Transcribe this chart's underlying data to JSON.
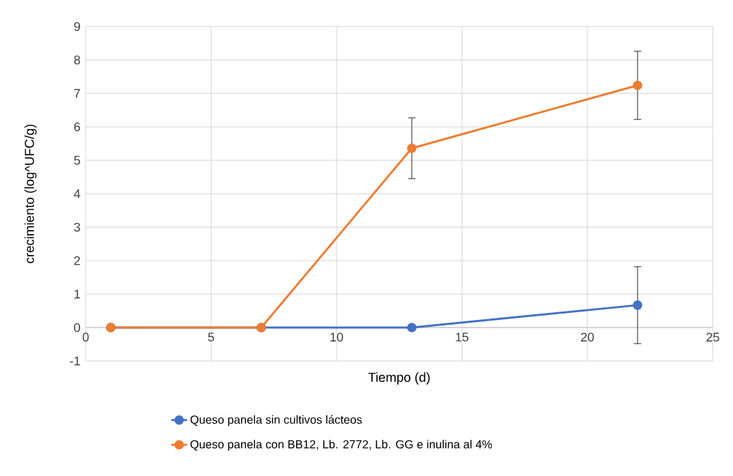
{
  "chart_data": {
    "type": "line",
    "xlabel": "Tiempo (d)",
    "ylabel": "crecimiento (log^UFC/g)",
    "xlim": [
      0,
      25
    ],
    "xticks": [
      0,
      5,
      10,
      15,
      20,
      25
    ],
    "ylim": [
      -1,
      9
    ],
    "yticks": [
      -1,
      0,
      1,
      2,
      3,
      4,
      5,
      6,
      7,
      8,
      9
    ],
    "grid": true,
    "legend": "bottom",
    "marker": "circle",
    "line_style": "solid",
    "series": [
      {
        "name": "Queso panela sin cultivos lácteos",
        "color": "#4472c4",
        "x": [
          1,
          7,
          13,
          22
        ],
        "values": [
          0,
          0,
          0,
          0.67
        ],
        "errors": [
          null,
          null,
          null,
          1.15
        ]
      },
      {
        "name": "Queso panela con BB12, Lb. 2772, Lb. GG e inulina al 4%",
        "color": "#ed7d31",
        "x": [
          1,
          7,
          13,
          22
        ],
        "values": [
          0,
          0,
          5.36,
          7.24
        ],
        "errors": [
          null,
          null,
          0.91,
          1.02
        ]
      }
    ]
  }
}
